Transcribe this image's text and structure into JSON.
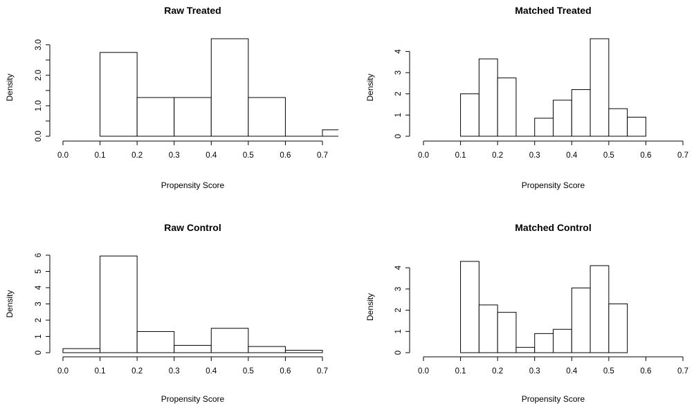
{
  "chart_data": [
    {
      "type": "bar",
      "title": "Raw Treated",
      "xlabel": "Propensity Score",
      "ylabel": "Density",
      "xlim": [
        0.0,
        0.7
      ],
      "ylim": [
        0.0,
        3.2
      ],
      "xticks": [
        "0.0",
        "0.1",
        "0.2",
        "0.3",
        "0.4",
        "0.5",
        "0.6",
        "0.7"
      ],
      "yticks": [
        "0.0",
        "1.0",
        "2.0",
        "3.0"
      ],
      "ytick_values": [
        0,
        1,
        2,
        3
      ],
      "yminor": [
        0.5,
        1.5,
        2.5
      ],
      "bins": [
        {
          "x0": 0.1,
          "x1": 0.2,
          "value": 2.75
        },
        {
          "x0": 0.2,
          "x1": 0.3,
          "value": 1.27
        },
        {
          "x0": 0.3,
          "x1": 0.4,
          "value": 1.27
        },
        {
          "x0": 0.4,
          "x1": 0.5,
          "value": 3.2
        },
        {
          "x0": 0.5,
          "x1": 0.6,
          "value": 1.27
        },
        {
          "x0": 0.6,
          "x1": 0.7,
          "value": 0.0
        },
        {
          "x0": 0.7,
          "x1": 0.8,
          "value": 0.21
        }
      ]
    },
    {
      "type": "bar",
      "title": "Matched Treated",
      "xlabel": "Propensity Score",
      "ylabel": "Density",
      "xlim": [
        0.0,
        0.7
      ],
      "ylim": [
        0.0,
        4.6
      ],
      "xticks": [
        "0.0",
        "0.1",
        "0.2",
        "0.3",
        "0.4",
        "0.5",
        "0.6",
        "0.7"
      ],
      "yticks": [
        "0",
        "1",
        "2",
        "3",
        "4"
      ],
      "ytick_values": [
        0,
        1,
        2,
        3,
        4
      ],
      "yminor": [],
      "bins": [
        {
          "x0": 0.1,
          "x1": 0.15,
          "value": 2.0
        },
        {
          "x0": 0.15,
          "x1": 0.2,
          "value": 3.65
        },
        {
          "x0": 0.2,
          "x1": 0.25,
          "value": 2.75
        },
        {
          "x0": 0.25,
          "x1": 0.3,
          "value": 0.0
        },
        {
          "x0": 0.3,
          "x1": 0.35,
          "value": 0.85
        },
        {
          "x0": 0.35,
          "x1": 0.4,
          "value": 1.7
        },
        {
          "x0": 0.4,
          "x1": 0.45,
          "value": 2.2
        },
        {
          "x0": 0.45,
          "x1": 0.5,
          "value": 4.6
        },
        {
          "x0": 0.5,
          "x1": 0.55,
          "value": 1.3
        },
        {
          "x0": 0.55,
          "x1": 0.6,
          "value": 0.9
        }
      ]
    },
    {
      "type": "bar",
      "title": "Raw Control",
      "xlabel": "Propensity Score",
      "ylabel": "Density",
      "xlim": [
        0.0,
        0.7
      ],
      "ylim": [
        0.0,
        6.0
      ],
      "xticks": [
        "0.0",
        "0.1",
        "0.2",
        "0.3",
        "0.4",
        "0.5",
        "0.6",
        "0.7"
      ],
      "yticks": [
        "0",
        "1",
        "2",
        "3",
        "4",
        "5",
        "6"
      ],
      "ytick_values": [
        0,
        1,
        2,
        3,
        4,
        5,
        6
      ],
      "yminor": [],
      "bins": [
        {
          "x0": 0.0,
          "x1": 0.1,
          "value": 0.25
        },
        {
          "x0": 0.1,
          "x1": 0.2,
          "value": 5.95
        },
        {
          "x0": 0.2,
          "x1": 0.3,
          "value": 1.3
        },
        {
          "x0": 0.3,
          "x1": 0.4,
          "value": 0.45
        },
        {
          "x0": 0.4,
          "x1": 0.5,
          "value": 1.5
        },
        {
          "x0": 0.5,
          "x1": 0.6,
          "value": 0.38
        },
        {
          "x0": 0.6,
          "x1": 0.7,
          "value": 0.15
        }
      ]
    },
    {
      "type": "bar",
      "title": "Matched Control",
      "xlabel": "Propensity Score",
      "ylabel": "Density",
      "xlim": [
        0.0,
        0.7
      ],
      "ylim": [
        0.0,
        4.3
      ],
      "xticks": [
        "0.0",
        "0.1",
        "0.2",
        "0.3",
        "0.4",
        "0.5",
        "0.6",
        "0.7"
      ],
      "yticks": [
        "0",
        "1",
        "2",
        "3",
        "4"
      ],
      "ytick_values": [
        0,
        1,
        2,
        3,
        4
      ],
      "yminor": [],
      "bins": [
        {
          "x0": 0.1,
          "x1": 0.15,
          "value": 4.3
        },
        {
          "x0": 0.15,
          "x1": 0.2,
          "value": 2.25
        },
        {
          "x0": 0.2,
          "x1": 0.25,
          "value": 1.9
        },
        {
          "x0": 0.25,
          "x1": 0.3,
          "value": 0.25
        },
        {
          "x0": 0.3,
          "x1": 0.35,
          "value": 0.9
        },
        {
          "x0": 0.35,
          "x1": 0.4,
          "value": 1.1
        },
        {
          "x0": 0.4,
          "x1": 0.45,
          "value": 3.05
        },
        {
          "x0": 0.45,
          "x1": 0.5,
          "value": 4.1
        },
        {
          "x0": 0.5,
          "x1": 0.55,
          "value": 2.3
        }
      ]
    }
  ]
}
